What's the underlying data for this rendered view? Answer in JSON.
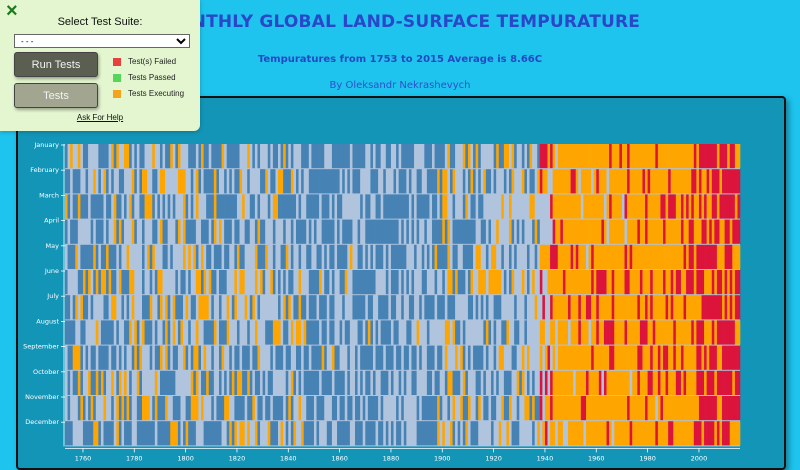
{
  "header": {
    "title": "MONTHLY GLOBAL LAND-SURFACE TEMPURATURE",
    "subtitle": "Tempuratures from 1753 to 2015 Average is 8.66C",
    "byline": "By Oleksandr Nekrashevych"
  },
  "test_panel": {
    "close_icon": "×",
    "heading": "Select Test Suite:",
    "select_value": "- - -",
    "run_button": "Run Tests",
    "tests_button": "Tests",
    "legend": [
      {
        "label": "Test(s) Failed",
        "color": "#e8403a"
      },
      {
        "label": "Tests Passed",
        "color": "#55d65b"
      },
      {
        "label": "Tests Executing",
        "color": "#f6a21a"
      }
    ],
    "help_link": "Ask For Help"
  },
  "colors": {
    "background": "#1ec4ee",
    "title": "#2a46c9",
    "cold": "#4682b4",
    "mild": "#b0c4de",
    "warm": "#ffa500",
    "hot": "#dc143c"
  },
  "chart_data": {
    "type": "heatmap",
    "title": "MONTHLY GLOBAL LAND-SURFACE TEMPURATURE",
    "months": [
      "January",
      "February",
      "March",
      "April",
      "May",
      "June",
      "July",
      "August",
      "September",
      "October",
      "November",
      "December"
    ],
    "year_start": 1753,
    "year_end": 2015,
    "xticks": [
      1760,
      1780,
      1800,
      1820,
      1840,
      1860,
      1880,
      1900,
      1920,
      1940,
      1960,
      1980,
      2000
    ],
    "base_temperature": 8.66,
    "palette": [
      "#4682b4",
      "#b0c4de",
      "#ffa500",
      "#dc143c"
    ]
  }
}
